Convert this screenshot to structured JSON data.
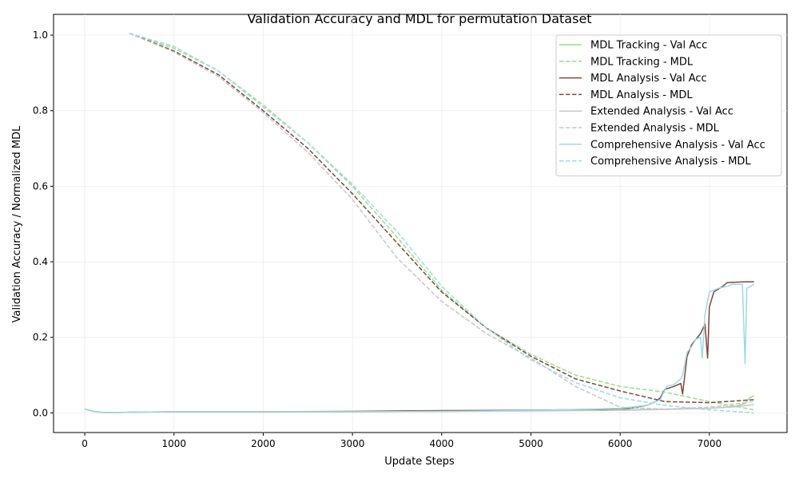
{
  "chart_data": {
    "type": "line",
    "title": "Validation Accuracy and MDL for permutation Dataset",
    "xlabel": "Update Steps",
    "ylabel": "Validation Accuracy / Normalized MDL",
    "xlim": [
      -350,
      7870
    ],
    "ylim": [
      -0.052,
      1.055
    ],
    "x_ticks": [
      0,
      1000,
      2000,
      3000,
      4000,
      5000,
      6000,
      7000
    ],
    "y_ticks": [
      0.0,
      0.2,
      0.4,
      0.6,
      0.8,
      1.0
    ],
    "x_tick_labels": [
      "0",
      "1000",
      "2000",
      "3000",
      "4000",
      "5000",
      "6000",
      "7000"
    ],
    "y_tick_labels": [
      "0.0",
      "0.2",
      "0.4",
      "0.6",
      "0.8",
      "1.0"
    ],
    "grid": true,
    "legend_position": "top-right",
    "series": [
      {
        "name": "MDL Tracking - Val Acc",
        "color": "#98df8a",
        "style": "solid",
        "points": [
          [
            0,
            0.01
          ],
          [
            100,
            0.004
          ],
          [
            200,
            0.001
          ],
          [
            400,
            0.001
          ],
          [
            600,
            0.002
          ],
          [
            1000,
            0.003
          ],
          [
            2000,
            0.003
          ],
          [
            3000,
            0.003
          ],
          [
            4000,
            0.004
          ],
          [
            5000,
            0.006
          ],
          [
            6000,
            0.008
          ],
          [
            6500,
            0.01
          ],
          [
            7000,
            0.012
          ],
          [
            7300,
            0.018
          ],
          [
            7400,
            0.025
          ],
          [
            7450,
            0.04
          ],
          [
            7500,
            0.045
          ]
        ]
      },
      {
        "name": "MDL Tracking - MDL",
        "color": "#98df8a",
        "style": "dashed",
        "points": [
          [
            500,
            1.005
          ],
          [
            1000,
            0.965
          ],
          [
            1500,
            0.905
          ],
          [
            2000,
            0.815
          ],
          [
            2500,
            0.715
          ],
          [
            3000,
            0.6
          ],
          [
            3500,
            0.465
          ],
          [
            4000,
            0.325
          ],
          [
            4500,
            0.225
          ],
          [
            5000,
            0.155
          ],
          [
            5500,
            0.1
          ],
          [
            6000,
            0.07
          ],
          [
            6500,
            0.055
          ],
          [
            7000,
            0.03
          ],
          [
            7500,
            0.008
          ]
        ]
      },
      {
        "name": "MDL Analysis - Val Acc",
        "color": "#7b4a3e",
        "style": "solid",
        "points": [
          [
            0,
            0.01
          ],
          [
            100,
            0.004
          ],
          [
            200,
            0.001
          ],
          [
            400,
            0.001
          ],
          [
            600,
            0.002
          ],
          [
            1000,
            0.003
          ],
          [
            2000,
            0.003
          ],
          [
            3000,
            0.004
          ],
          [
            4000,
            0.006
          ],
          [
            5000,
            0.007
          ],
          [
            5800,
            0.01
          ],
          [
            6100,
            0.012
          ],
          [
            6300,
            0.02
          ],
          [
            6400,
            0.03
          ],
          [
            6450,
            0.04
          ],
          [
            6500,
            0.062
          ],
          [
            6600,
            0.07
          ],
          [
            6680,
            0.078
          ],
          [
            6700,
            0.05
          ],
          [
            6750,
            0.15
          ],
          [
            6800,
            0.18
          ],
          [
            6900,
            0.21
          ],
          [
            6950,
            0.235
          ],
          [
            6980,
            0.145
          ],
          [
            7000,
            0.28
          ],
          [
            7050,
            0.32
          ],
          [
            7150,
            0.335
          ],
          [
            7200,
            0.345
          ],
          [
            7400,
            0.347
          ],
          [
            7500,
            0.347
          ]
        ]
      },
      {
        "name": "MDL Analysis - MDL",
        "color": "#7b4a3e",
        "style": "dashed",
        "points": [
          [
            500,
            1.005
          ],
          [
            1000,
            0.958
          ],
          [
            1500,
            0.895
          ],
          [
            2000,
            0.8
          ],
          [
            2500,
            0.7
          ],
          [
            3000,
            0.58
          ],
          [
            3500,
            0.45
          ],
          [
            4000,
            0.32
          ],
          [
            4500,
            0.225
          ],
          [
            5000,
            0.15
          ],
          [
            5500,
            0.09
          ],
          [
            6000,
            0.058
          ],
          [
            6500,
            0.03
          ],
          [
            7000,
            0.027
          ],
          [
            7500,
            0.035
          ]
        ]
      },
      {
        "name": "Extended Analysis - Val Acc",
        "color": "#c7c7c7",
        "style": "solid",
        "points": [
          [
            0,
            0.01
          ],
          [
            100,
            0.004
          ],
          [
            200,
            0.001
          ],
          [
            400,
            0.001
          ],
          [
            600,
            0.002
          ],
          [
            1000,
            0.003
          ],
          [
            2000,
            0.003
          ],
          [
            3000,
            0.003
          ],
          [
            4000,
            0.004
          ],
          [
            5000,
            0.005
          ],
          [
            6000,
            0.007
          ],
          [
            6500,
            0.009
          ],
          [
            7000,
            0.012
          ],
          [
            7300,
            0.016
          ],
          [
            7500,
            0.022
          ]
        ]
      },
      {
        "name": "Extended Analysis - MDL",
        "color": "#c7c7c7",
        "style": "dashed",
        "points": [
          [
            500,
            1.005
          ],
          [
            1000,
            0.955
          ],
          [
            1500,
            0.89
          ],
          [
            2000,
            0.795
          ],
          [
            2500,
            0.69
          ],
          [
            3000,
            0.565
          ],
          [
            3500,
            0.41
          ],
          [
            4000,
            0.295
          ],
          [
            4500,
            0.21
          ],
          [
            5000,
            0.145
          ],
          [
            5500,
            0.07
          ],
          [
            6000,
            0.015
          ],
          [
            6500,
            0.01
          ],
          [
            7000,
            0.015
          ],
          [
            7500,
            0.03
          ]
        ]
      },
      {
        "name": "Comprehensive Analysis - Val Acc",
        "color": "#9edae5",
        "style": "solid",
        "points": [
          [
            0,
            0.01
          ],
          [
            100,
            0.004
          ],
          [
            200,
            0.001
          ],
          [
            400,
            0.001
          ],
          [
            600,
            0.002
          ],
          [
            1000,
            0.003
          ],
          [
            2000,
            0.003
          ],
          [
            3000,
            0.003
          ],
          [
            4000,
            0.004
          ],
          [
            5000,
            0.006
          ],
          [
            6000,
            0.012
          ],
          [
            6300,
            0.02
          ],
          [
            6450,
            0.035
          ],
          [
            6520,
            0.07
          ],
          [
            6600,
            0.075
          ],
          [
            6680,
            0.09
          ],
          [
            6700,
            0.1
          ],
          [
            6750,
            0.16
          ],
          [
            6800,
            0.175
          ],
          [
            6850,
            0.195
          ],
          [
            6900,
            0.2
          ],
          [
            6920,
            0.145
          ],
          [
            6950,
            0.26
          ],
          [
            7000,
            0.32
          ],
          [
            7100,
            0.33
          ],
          [
            7200,
            0.335
          ],
          [
            7250,
            0.34
          ],
          [
            7370,
            0.34
          ],
          [
            7400,
            0.13
          ],
          [
            7420,
            0.33
          ],
          [
            7500,
            0.34
          ]
        ]
      },
      {
        "name": "Comprehensive Analysis - MDL",
        "color": "#9edae5",
        "style": "dashed",
        "points": [
          [
            500,
            1.005
          ],
          [
            1000,
            0.97
          ],
          [
            1500,
            0.905
          ],
          [
            2000,
            0.81
          ],
          [
            2500,
            0.715
          ],
          [
            3000,
            0.605
          ],
          [
            3500,
            0.48
          ],
          [
            4000,
            0.335
          ],
          [
            4500,
            0.225
          ],
          [
            5000,
            0.14
          ],
          [
            5500,
            0.08
          ],
          [
            6000,
            0.04
          ],
          [
            6500,
            0.02
          ],
          [
            7000,
            0.008
          ],
          [
            7500,
            0.0
          ]
        ]
      }
    ]
  }
}
